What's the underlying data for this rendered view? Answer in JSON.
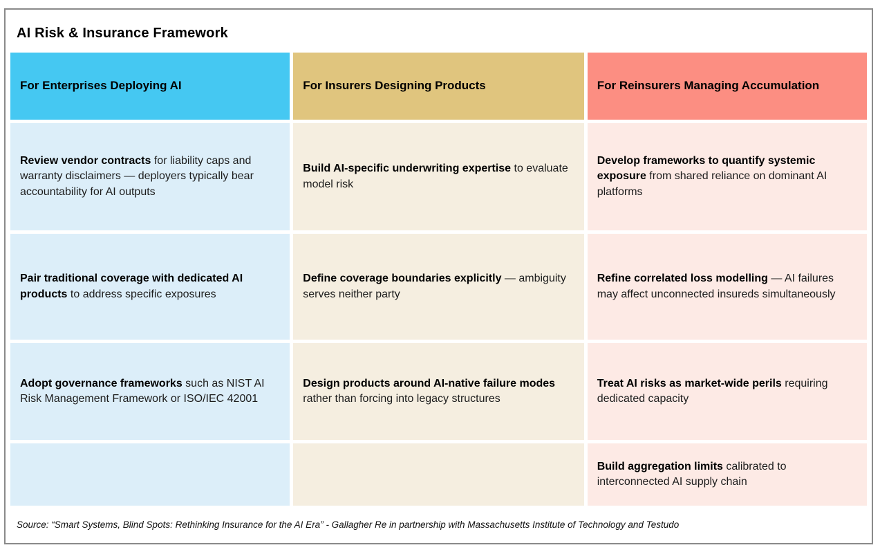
{
  "title": "AI Risk & Insurance Framework",
  "colors": {
    "border": "#8a8a8a",
    "col1_header": "#45C8F2",
    "col2_header": "#E0C57E",
    "col3_header": "#FC8E82",
    "col1_body": "#DCEEF9",
    "col2_body": "#F5EEE0",
    "col3_body": "#FDEAE5"
  },
  "columns": [
    {
      "header": "For Enterprises Deploying AI",
      "cells": [
        {
          "bold": "Review vendor contracts",
          "rest": " for liability caps and warranty disclaimers — deployers typically bear accountability for AI outputs"
        },
        {
          "bold": "Pair traditional coverage with dedicated AI products",
          "rest": " to address specific exposures"
        },
        {
          "bold": "Adopt governance frameworks",
          "rest": " such as NIST AI Risk Management Framework or ISO/IEC 42001"
        },
        {
          "bold": "",
          "rest": ""
        }
      ]
    },
    {
      "header": "For Insurers Designing Products",
      "cells": [
        {
          "bold": "Build AI-specific underwriting expertise",
          "rest": " to evaluate model risk"
        },
        {
          "bold": "Define coverage boundaries explicitly",
          "rest": " — ambiguity serves neither party"
        },
        {
          "bold": "Design products around AI-native failure modes",
          "rest": " rather than forcing into legacy structures"
        },
        {
          "bold": "",
          "rest": ""
        }
      ]
    },
    {
      "header": "For Reinsurers Managing Accumulation",
      "cells": [
        {
          "bold": "Develop frameworks to quantify systemic exposure",
          "rest": " from shared reliance on dominant AI platforms"
        },
        {
          "bold": "Refine correlated loss modelling",
          "rest": " — AI failures may affect unconnected insureds simultaneously"
        },
        {
          "bold": "Treat AI risks as market-wide perils",
          "rest": " requiring dedicated capacity"
        },
        {
          "bold": "Build aggregation limits",
          "rest": " calibrated to interconnected AI supply chain"
        }
      ]
    }
  ],
  "source": "Source:  “Smart Systems, Blind Spots: Rethinking Insurance for the AI Era” - Gallagher Re in partnership with Massachusetts Institute of Technology and Testudo",
  "chart_data": {
    "type": "table",
    "title": "AI Risk & Insurance Framework",
    "columns": [
      "For Enterprises Deploying AI",
      "For Insurers Designing Products",
      "For Reinsurers Managing Accumulation"
    ],
    "rows": [
      [
        "Review vendor contracts for liability caps and warranty disclaimers — deployers typically bear accountability for AI outputs",
        "Build AI-specific underwriting expertise to evaluate model risk",
        "Develop frameworks to quantify systemic exposure from shared reliance on dominant AI platforms"
      ],
      [
        "Pair traditional coverage with dedicated AI products to address specific exposures",
        "Define coverage boundaries explicitly — ambiguity serves neither party",
        "Refine correlated loss modelling — AI failures may affect unconnected insureds simultaneously"
      ],
      [
        "Adopt governance frameworks such as NIST AI Risk Management Framework or ISO/IEC 42001",
        "Design products around AI-native failure modes rather than forcing into legacy structures",
        "Treat AI risks as market-wide perils requiring dedicated capacity"
      ],
      [
        "",
        "",
        "Build aggregation limits calibrated to interconnected AI supply chain"
      ]
    ],
    "source": "Source: “Smart Systems, Blind Spots: Rethinking Insurance for the AI Era” - Gallagher Re in partnership with Massachusetts Institute of Technology and Testudo"
  }
}
